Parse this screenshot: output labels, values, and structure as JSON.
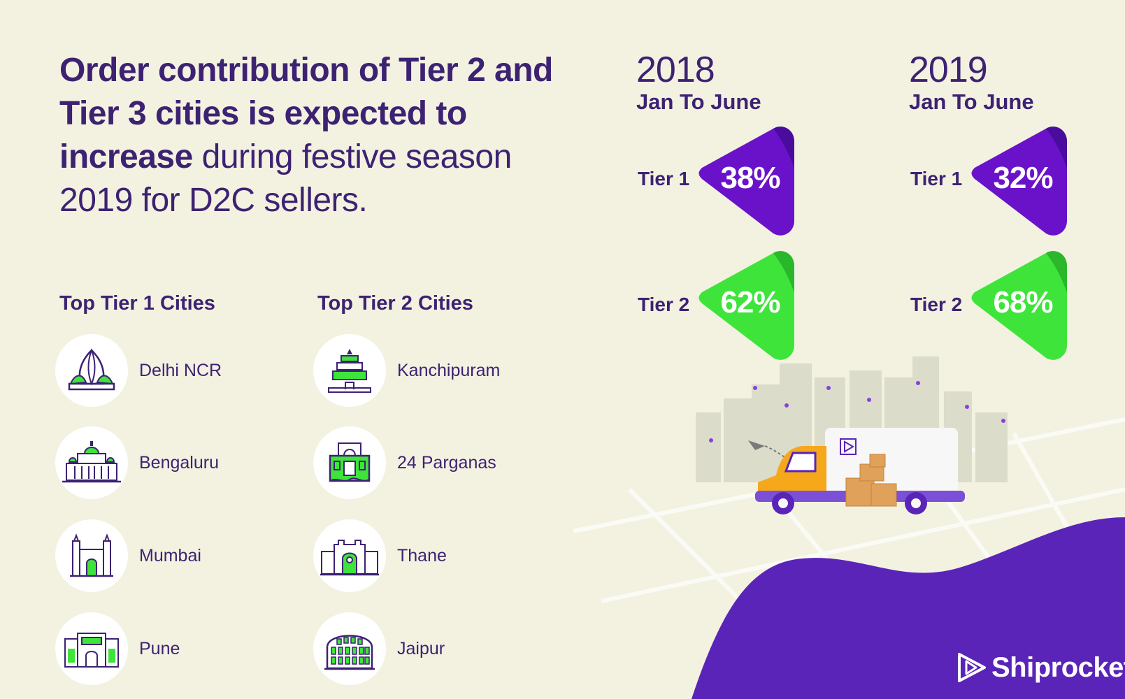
{
  "headline": {
    "bold": "Order contribution of Tier 2 and Tier 3 cities is expected to increase",
    "light": "during festive season 2019 for D2C sellers."
  },
  "tier1_title": "Top Tier 1 Cities",
  "tier2_title": "Top Tier 2 Cities",
  "tier1_cities": [
    "Delhi NCR",
    "Bengaluru",
    "Mumbai",
    "Pune"
  ],
  "tier2_cities": [
    "Kanchipuram",
    "24 Parganas",
    "Thane",
    "Jaipur"
  ],
  "stats": [
    {
      "year": "2018",
      "period": "Jan To June",
      "tier1_label": "Tier 1",
      "tier1_value": "38%",
      "tier2_label": "Tier 2",
      "tier2_value": "62%"
    },
    {
      "year": "2019",
      "period": "Jan To June",
      "tier1_label": "Tier 1",
      "tier1_value": "32%",
      "tier2_label": "Tier 2",
      "tier2_value": "68%"
    }
  ],
  "brand": "Shiprocket",
  "colors": {
    "purple": "#6a12c9",
    "green": "#3ee43a",
    "text": "#3d2272",
    "background": "#f3f2e1",
    "blob": "#5a24b8"
  },
  "icons": [
    "lotus-temple-icon",
    "vidhana-soudha-icon",
    "gateway-of-india-icon",
    "shaniwar-wada-icon",
    "temple-gopuram-icon",
    "palace-icon",
    "fort-icon",
    "hawa-mahal-icon",
    "delivery-van-icon",
    "city-skyline-icon",
    "shiprocket-logo-icon"
  ]
}
